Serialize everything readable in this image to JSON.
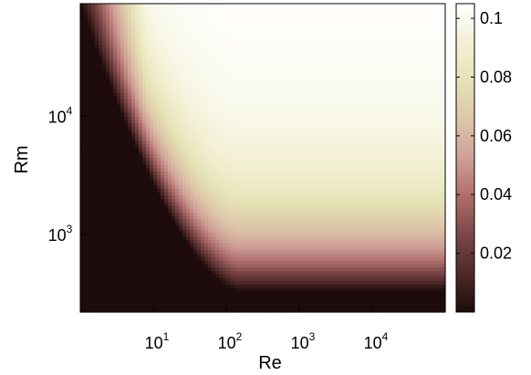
{
  "chart_data": {
    "type": "heatmap",
    "title": "",
    "xlabel": "Re",
    "ylabel": "Rm",
    "x_scale": "log",
    "y_scale": "log",
    "xlim": [
      1,
      100000
    ],
    "ylim": [
      220,
      90000
    ],
    "x_ticks": [
      {
        "value": 10,
        "base": "10",
        "exp": "1"
      },
      {
        "value": 100,
        "base": "10",
        "exp": "2"
      },
      {
        "value": 1000,
        "base": "10",
        "exp": "3"
      },
      {
        "value": 10000,
        "base": "10",
        "exp": "4"
      }
    ],
    "y_ticks": [
      {
        "value": 1000,
        "base": "10",
        "exp": "3"
      },
      {
        "value": 10000,
        "base": "10",
        "exp": "4"
      }
    ],
    "colorbar": {
      "range": [
        0,
        0.105
      ],
      "ticks": [
        "0.02",
        "0.04",
        "0.06",
        "0.08",
        "0.1"
      ],
      "tick_values": [
        0.02,
        0.04,
        0.06,
        0.08,
        0.1
      ],
      "colormap": [
        "#1e0b0b",
        "#4d2828",
        "#7c4646",
        "#b06f6f",
        "#cfa097",
        "#dcc5a8",
        "#e6e2b6",
        "#f4f1d7",
        "#ffffff"
      ]
    },
    "threshold": {
      "Re_low": 1,
      "Rm_critical": 330,
      "description_values": {
        "Rm_at_Re_1": 90000,
        "Re_at_Rm_floor": 150
      }
    },
    "grid": false
  }
}
